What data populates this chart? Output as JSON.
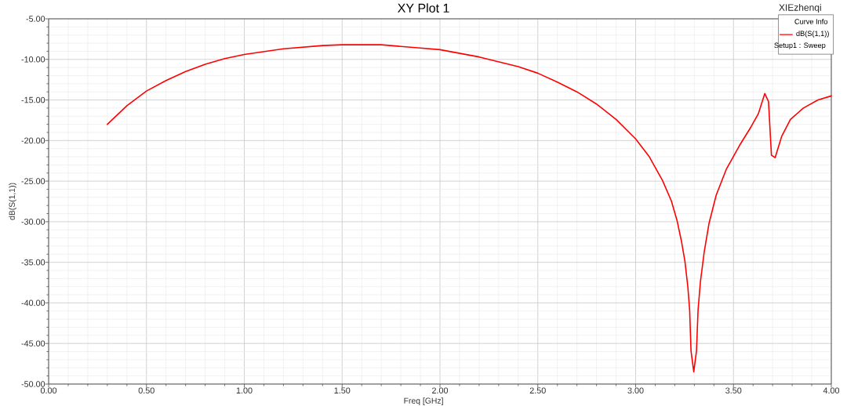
{
  "chart_data": {
    "type": "line",
    "title": "XY Plot 1",
    "xlabel": "Freq [GHz]",
    "ylabel": "dB(S(1,1))",
    "legend_title": "Curve Info",
    "annotations": [
      "XIEzhenqi",
      "Setup1 : Sweep"
    ],
    "x": [
      0.3,
      0.4,
      0.5,
      0.6,
      0.7,
      0.8,
      0.9,
      1.0,
      1.2,
      1.4,
      1.5,
      1.7,
      1.9,
      2.0,
      2.2,
      2.4,
      2.5,
      2.6,
      2.7,
      2.8,
      2.9,
      3.0,
      3.07,
      3.137,
      3.182,
      3.212,
      3.234,
      3.252,
      3.267,
      3.276,
      3.283,
      3.297,
      3.311,
      3.319,
      3.331,
      3.35,
      3.375,
      3.412,
      3.464,
      3.531,
      3.59,
      3.627,
      3.66,
      3.679,
      3.694,
      3.713,
      3.746,
      3.791,
      3.857,
      3.932,
      4.0
    ],
    "series": [
      {
        "name": "dB(S(1,1))",
        "color": "#ff0000",
        "values": [
          -18.0,
          -15.7,
          -13.9,
          -12.6,
          -11.5,
          -10.6,
          -9.9,
          -9.4,
          -8.7,
          -8.3,
          -8.2,
          -8.2,
          -8.6,
          -8.8,
          -9.7,
          -10.9,
          -11.7,
          -12.8,
          -14.0,
          -15.5,
          -17.4,
          -19.8,
          -22.0,
          -24.9,
          -27.4,
          -29.9,
          -32.4,
          -34.9,
          -38.1,
          -40.9,
          -45.9,
          -48.5,
          -45.9,
          -40.9,
          -37.4,
          -33.8,
          -30.2,
          -26.7,
          -23.5,
          -20.6,
          -18.3,
          -16.7,
          -14.2,
          -15.2,
          -21.8,
          -22.1,
          -19.5,
          -17.4,
          -16.0,
          -15.0,
          -14.5
        ]
      }
    ],
    "xlim": [
      0,
      4
    ],
    "ylim": [
      -50,
      -5
    ],
    "xticks": [
      {
        "value": 0,
        "label": "0.00"
      },
      {
        "value": 0.5,
        "label": "0.50"
      },
      {
        "value": 1,
        "label": "1.00"
      },
      {
        "value": 1.5,
        "label": "1.50"
      },
      {
        "value": 2,
        "label": "2.00"
      },
      {
        "value": 2.5,
        "label": "2.50"
      },
      {
        "value": 3,
        "label": "3.00"
      },
      {
        "value": 3.5,
        "label": "3.50"
      },
      {
        "value": 4,
        "label": "4.00"
      }
    ],
    "yticks": [
      {
        "value": -50,
        "label": "-50.00"
      },
      {
        "value": -45,
        "label": "-45.00"
      },
      {
        "value": -40,
        "label": "-40.00"
      },
      {
        "value": -35,
        "label": "-35.00"
      },
      {
        "value": -30,
        "label": "-30.00"
      },
      {
        "value": -25,
        "label": "-25.00"
      },
      {
        "value": -20,
        "label": "-20.00"
      },
      {
        "value": -15,
        "label": "-15.00"
      },
      {
        "value": -10,
        "label": "-10.00"
      },
      {
        "value": -5,
        "label": "-5.00"
      }
    ],
    "grid": true,
    "legend": "top right"
  }
}
